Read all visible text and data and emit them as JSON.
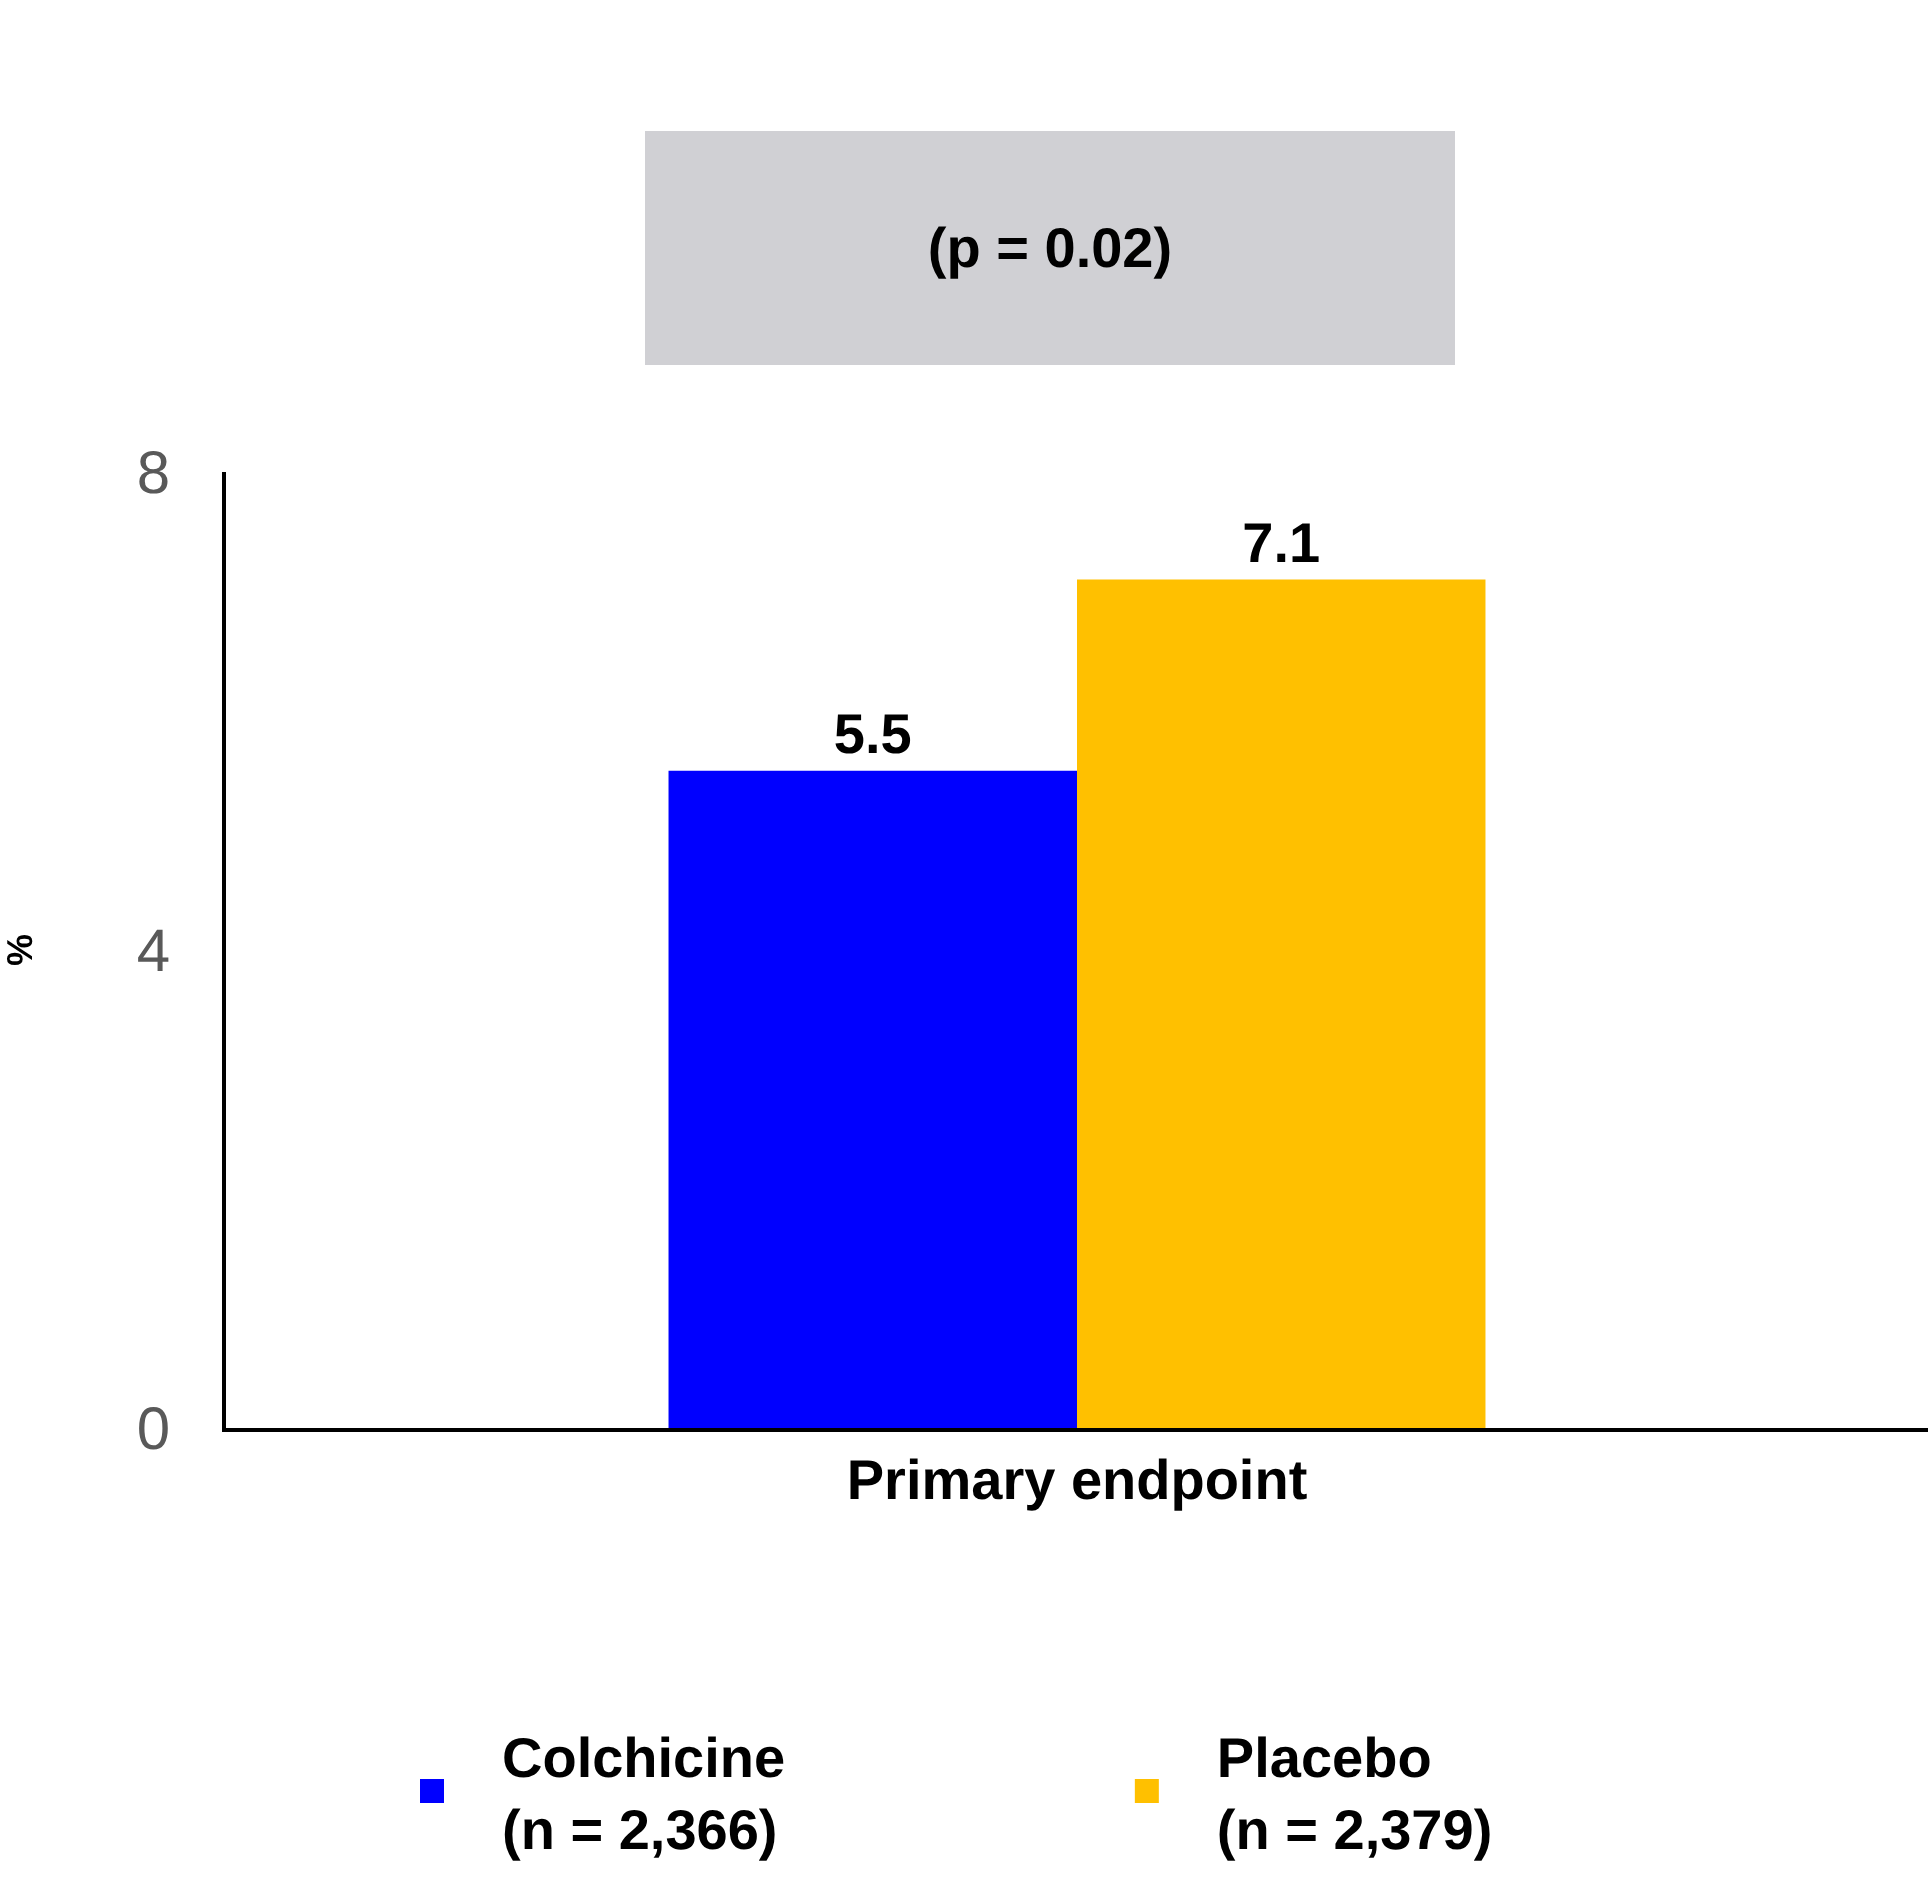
{
  "chart_data": {
    "type": "bar",
    "categories": [
      "Primary endpoint"
    ],
    "series": [
      {
        "name": "Colchicine\n(n = 2,366)",
        "color": "#0000ff",
        "values": [
          5.5
        ]
      },
      {
        "name": "Placebo\n(n = 2,379)",
        "color": "#ffc000",
        "values": [
          7.1
        ]
      }
    ],
    "ylabel": "%",
    "ylim": [
      0,
      8
    ],
    "yticks": [
      0,
      4,
      8
    ],
    "legend": "bottom",
    "data_labels": true,
    "annotations": [
      "(p = 0.02)"
    ]
  }
}
